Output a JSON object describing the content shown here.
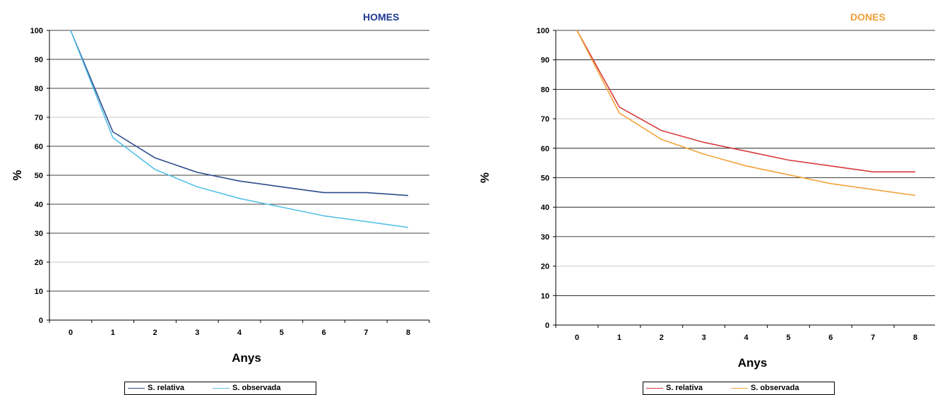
{
  "chart_data": [
    {
      "type": "line",
      "title": "HOMES",
      "title_color": "#1F3A93",
      "xlabel": "Anys",
      "ylabel": "%",
      "x": [
        0,
        1,
        2,
        3,
        4,
        5,
        6,
        7,
        8
      ],
      "ylim": [
        0,
        100
      ],
      "yticks": [
        0,
        10,
        20,
        30,
        40,
        50,
        60,
        70,
        80,
        90,
        100
      ],
      "grid": true,
      "legend_position": "bottom",
      "series": [
        {
          "name": "S. relativa",
          "color": "#2B4C8C",
          "values": [
            100,
            65,
            56,
            51,
            48,
            46,
            44,
            44,
            43
          ]
        },
        {
          "name": "S. observada",
          "color": "#56C1E8",
          "values": [
            100,
            63,
            52,
            46,
            42,
            39,
            36,
            34,
            32
          ]
        }
      ]
    },
    {
      "type": "line",
      "title": "DONES",
      "title_color": "#F0A038",
      "xlabel": "Anys",
      "ylabel": "%",
      "x": [
        0,
        1,
        2,
        3,
        4,
        5,
        6,
        7,
        8
      ],
      "ylim": [
        0,
        100
      ],
      "yticks": [
        0,
        10,
        20,
        30,
        40,
        50,
        60,
        70,
        80,
        90,
        100
      ],
      "grid": true,
      "legend_position": "bottom",
      "series": [
        {
          "name": "S. relativa",
          "color": "#D83A3A",
          "values": [
            100,
            74,
            66,
            62,
            59,
            56,
            54,
            52,
            52
          ]
        },
        {
          "name": "S. observada",
          "color": "#F2A33A",
          "values": [
            100,
            72,
            63,
            58,
            54,
            51,
            48,
            46,
            44
          ]
        }
      ]
    }
  ]
}
